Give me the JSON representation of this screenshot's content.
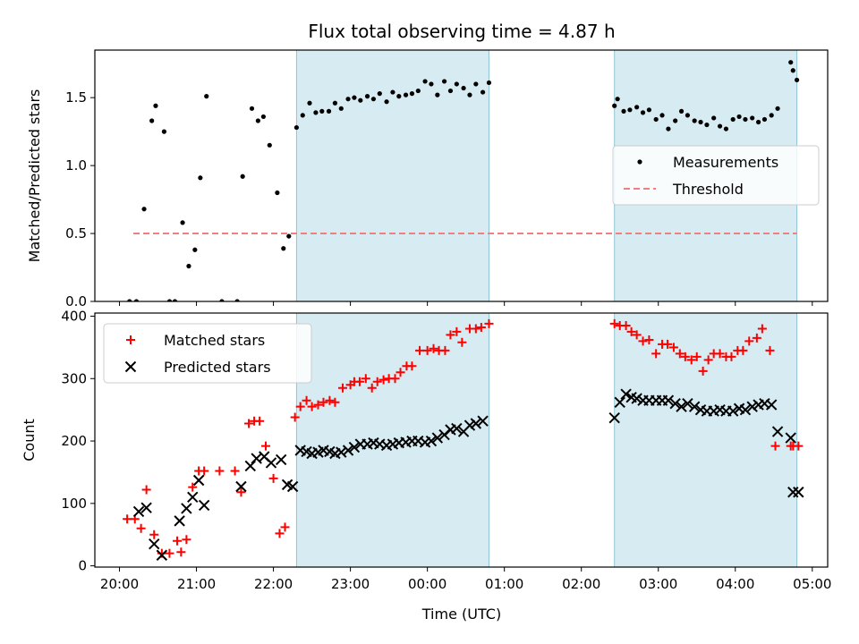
{
  "chart_data": {
    "type": "scatter",
    "title": "Flux total observing time = 4.87 h",
    "xlabel": "Time (UTC)",
    "x_tick_labels": [
      "20:00",
      "21:00",
      "22:00",
      "23:00",
      "00:00",
      "01:00",
      "02:00",
      "03:00",
      "04:00",
      "05:00"
    ],
    "x_tick_hours": [
      0,
      1,
      2,
      3,
      4,
      5,
      6,
      7,
      8,
      9
    ],
    "x_hours_offset_from": "20:00",
    "shaded_intervals": [
      [
        2.3,
        4.8
      ],
      [
        6.43,
        8.8
      ]
    ],
    "panels": [
      {
        "ylabel": "Matched/Predicted stars",
        "ylim": [
          0,
          1.85
        ],
        "yticks": [
          0.0,
          0.5,
          1.0,
          1.5
        ],
        "ytick_labels": [
          "0.0",
          "0.5",
          "1.0",
          "1.5"
        ],
        "threshold": {
          "name": "Threshold",
          "value": 0.5,
          "x_range": [
            0.18,
            8.8
          ],
          "color": "#f08080"
        },
        "legend_position": "center-right",
        "series": [
          {
            "name": "Measurements",
            "marker": "dot",
            "color": "#000000",
            "x": [
              0.13,
              0.22,
              0.32,
              0.42,
              0.47,
              0.58,
              0.65,
              0.72,
              0.82,
              0.9,
              0.98,
              1.05,
              1.13,
              1.33,
              1.53,
              1.6,
              1.72,
              1.8,
              1.87,
              1.95,
              2.05,
              2.13,
              2.2,
              2.3,
              2.38,
              2.47,
              2.55,
              2.63,
              2.72,
              2.8,
              2.88,
              2.97,
              3.05,
              3.13,
              3.22,
              3.3,
              3.38,
              3.47,
              3.55,
              3.63,
              3.72,
              3.8,
              3.88,
              3.97,
              4.05,
              4.13,
              4.22,
              4.3,
              4.38,
              4.47,
              4.55,
              4.63,
              4.72,
              4.8,
              6.43,
              6.47,
              6.55,
              6.63,
              6.72,
              6.8,
              6.88,
              6.97,
              7.05,
              7.13,
              7.22,
              7.3,
              7.38,
              7.47,
              7.55,
              7.63,
              7.72,
              7.8,
              7.88,
              7.97,
              8.05,
              8.13,
              8.22,
              8.3,
              8.38,
              8.47,
              8.55,
              8.72,
              8.75,
              8.8
            ],
            "y": [
              0.0,
              0.0,
              0.68,
              1.33,
              1.44,
              1.25,
              0.0,
              0.0,
              0.58,
              0.26,
              0.38,
              0.91,
              1.51,
              0.0,
              0.0,
              0.92,
              1.42,
              1.33,
              1.36,
              1.15,
              0.8,
              0.39,
              0.48,
              1.28,
              1.37,
              1.46,
              1.39,
              1.4,
              1.4,
              1.46,
              1.42,
              1.49,
              1.5,
              1.48,
              1.51,
              1.49,
              1.53,
              1.47,
              1.54,
              1.51,
              1.52,
              1.53,
              1.55,
              1.62,
              1.6,
              1.52,
              1.62,
              1.55,
              1.6,
              1.57,
              1.52,
              1.6,
              1.54,
              1.61,
              1.44,
              1.49,
              1.4,
              1.41,
              1.43,
              1.39,
              1.41,
              1.34,
              1.37,
              1.27,
              1.33,
              1.4,
              1.37,
              1.33,
              1.32,
              1.3,
              1.35,
              1.29,
              1.27,
              1.34,
              1.36,
              1.34,
              1.35,
              1.32,
              1.34,
              1.37,
              1.42,
              1.76,
              1.7,
              1.63
            ]
          }
        ]
      },
      {
        "ylabel": "Count",
        "ylim": [
          -2,
          405
        ],
        "yticks": [
          0,
          100,
          200,
          300,
          400
        ],
        "ytick_labels": [
          "0",
          "100",
          "200",
          "300",
          "400"
        ],
        "legend_position": "top-left",
        "series": [
          {
            "name": "Matched stars",
            "marker": "plus",
            "color": "#ff0000",
            "x": [
              0.1,
              0.2,
              0.28,
              0.35,
              0.45,
              0.55,
              0.65,
              0.75,
              0.8,
              0.87,
              0.95,
              1.03,
              1.1,
              1.3,
              1.5,
              1.58,
              1.68,
              1.75,
              1.82,
              1.9,
              2.0,
              2.08,
              2.15,
              2.28,
              2.35,
              2.43,
              2.5,
              2.58,
              2.65,
              2.73,
              2.8,
              2.9,
              3.0,
              3.05,
              3.12,
              3.2,
              3.28,
              3.35,
              3.43,
              3.5,
              3.58,
              3.65,
              3.73,
              3.8,
              3.9,
              4.0,
              4.08,
              4.15,
              4.23,
              4.3,
              4.38,
              4.45,
              4.55,
              4.63,
              4.7,
              4.8,
              6.43,
              6.5,
              6.58,
              6.65,
              6.72,
              6.8,
              6.88,
              6.97,
              7.05,
              7.12,
              7.2,
              7.28,
              7.35,
              7.43,
              7.5,
              7.58,
              7.65,
              7.72,
              7.8,
              7.88,
              7.95,
              8.03,
              8.1,
              8.18,
              8.28,
              8.35,
              8.45,
              8.52,
              8.72,
              8.75,
              8.82
            ],
            "y": [
              75,
              75,
              60,
              122,
              50,
              20,
              20,
              40,
              22,
              42,
              126,
              152,
              152,
              152,
              152,
              118,
              228,
              232,
              232,
              192,
              140,
              52,
              62,
              238,
              255,
              265,
              255,
              258,
              262,
              265,
              262,
              285,
              290,
              295,
              295,
              300,
              285,
              295,
              298,
              300,
              300,
              310,
              320,
              320,
              345,
              345,
              348,
              345,
              345,
              370,
              375,
              358,
              380,
              380,
              382,
              388,
              388,
              385,
              385,
              375,
              370,
              360,
              362,
              340,
              355,
              355,
              350,
              340,
              335,
              330,
              335,
              312,
              330,
              340,
              340,
              335,
              335,
              345,
              345,
              360,
              365,
              380,
              345,
              192,
              192,
              192,
              192
            ],
            "x_note": "",
            "y_note": ""
          },
          {
            "name": "Predicted stars",
            "marker": "x",
            "color": "#000000",
            "x": [
              0.25,
              0.35,
              0.45,
              0.55,
              0.78,
              0.87,
              0.95,
              1.03,
              1.1,
              1.58,
              1.7,
              1.78,
              1.88,
              1.97,
              2.1,
              2.18,
              2.25,
              2.35,
              2.43,
              2.5,
              2.58,
              2.65,
              2.73,
              2.8,
              2.88,
              2.97,
              3.05,
              3.13,
              3.22,
              3.3,
              3.38,
              3.47,
              3.55,
              3.63,
              3.72,
              3.8,
              3.88,
              3.97,
              4.05,
              4.13,
              4.22,
              4.3,
              4.38,
              4.47,
              4.55,
              4.63,
              4.72,
              6.43,
              6.5,
              6.58,
              6.65,
              6.72,
              6.8,
              6.88,
              6.97,
              7.05,
              7.13,
              7.22,
              7.3,
              7.38,
              7.47,
              7.55,
              7.63,
              7.72,
              7.8,
              7.88,
              7.97,
              8.05,
              8.13,
              8.22,
              8.3,
              8.38,
              8.47,
              8.55,
              8.72,
              8.75,
              8.82
            ],
            "y": [
              87,
              93,
              35,
              17,
              72,
              92,
              110,
              137,
              97,
              127,
              160,
              172,
              175,
              165,
              170,
              130,
              127,
              185,
              183,
              180,
              182,
              185,
              183,
              180,
              182,
              185,
              190,
              195,
              195,
              197,
              195,
              193,
              195,
              197,
              198,
              200,
              200,
              198,
              200,
              205,
              210,
              218,
              220,
              215,
              225,
              228,
              232,
              237,
              262,
              275,
              270,
              268,
              265,
              265,
              265,
              265,
              265,
              260,
              255,
              260,
              255,
              250,
              248,
              248,
              250,
              248,
              248,
              252,
              250,
              255,
              258,
              260,
              258,
              215,
              205,
              118,
              118
            ]
          }
        ]
      }
    ]
  }
}
